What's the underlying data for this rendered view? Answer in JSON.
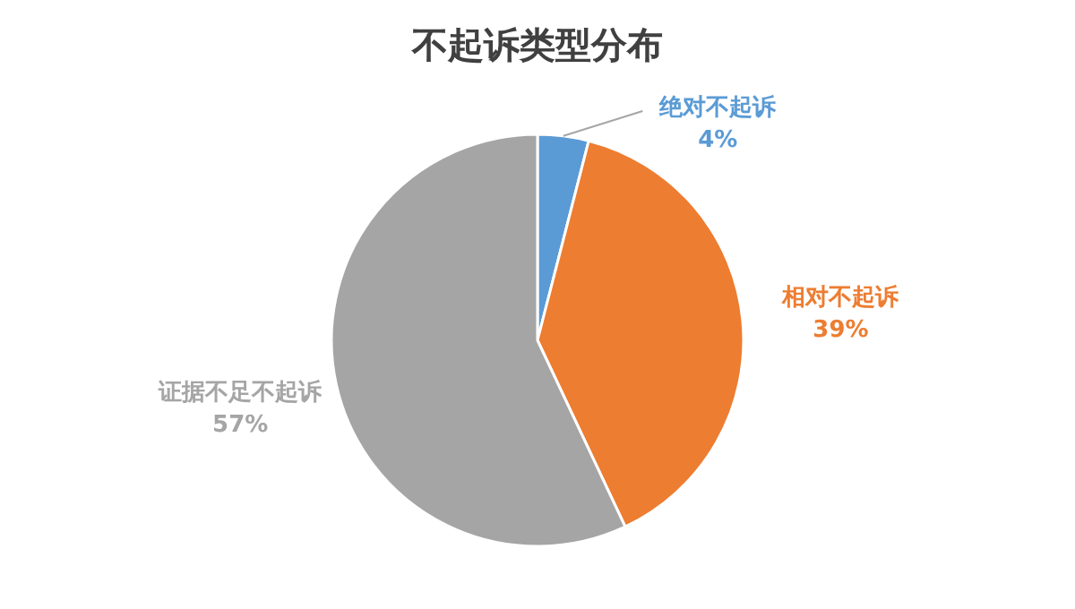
{
  "chart_data": {
    "type": "pie",
    "title": "不起诉类型分布",
    "categories": [
      "绝对不起诉",
      "相对不起诉",
      "证据不足不起诉"
    ],
    "values": [
      4,
      39,
      57
    ],
    "value_labels": [
      "4%",
      "39%",
      "57%"
    ],
    "colors": [
      "#5b9bd5",
      "#ed7d31",
      "#a5a5a5"
    ]
  }
}
